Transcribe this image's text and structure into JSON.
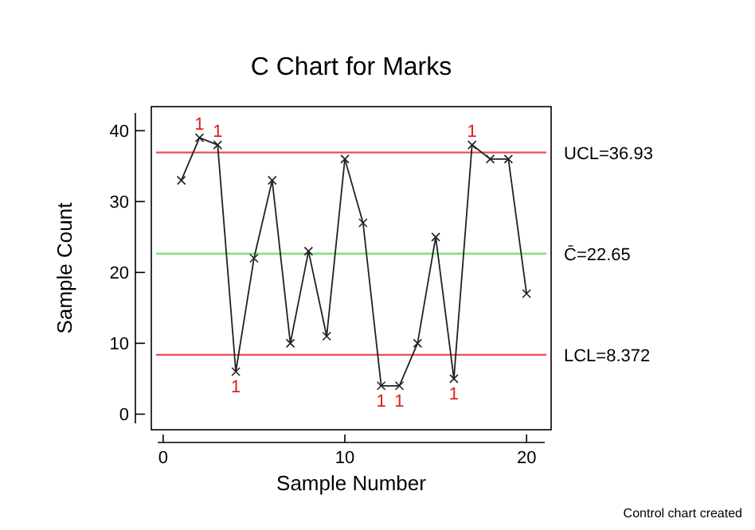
{
  "chart_data": {
    "type": "line",
    "title": "C Chart for Marks",
    "xlabel": "Sample Number",
    "ylabel": "Sample Count",
    "x": [
      1,
      2,
      3,
      4,
      5,
      6,
      7,
      8,
      9,
      10,
      11,
      12,
      13,
      14,
      15,
      16,
      17,
      18,
      19,
      20
    ],
    "series": [
      {
        "color": "#202020",
        "values": [
          33,
          39,
          38,
          6,
          22,
          33,
          10,
          23,
          11,
          36,
          27,
          4,
          4,
          10,
          25,
          5,
          38,
          36,
          36,
          17
        ]
      }
    ],
    "xlim": [
      -0.3,
      21
    ],
    "xticks": [
      0,
      10,
      20
    ],
    "ylim": [
      -1.3,
      42.5
    ],
    "yticks": [
      0,
      10,
      20,
      30,
      40
    ],
    "marker": "cross",
    "line_style": "solid",
    "ref_lines": [
      {
        "axis": "y",
        "value": 36.93,
        "label": "UCL=36.93",
        "color": "#e85050"
      },
      {
        "axis": "y",
        "value": 22.65,
        "label": "C̄=22.65",
        "color": "#80e080"
      },
      {
        "axis": "y",
        "value": 8.372,
        "label": "LCL=8.372",
        "color": "#e85050"
      }
    ],
    "annotations": [
      {
        "text": "1",
        "x": 2,
        "y": 39
      },
      {
        "text": "1",
        "x": 3,
        "y": 38
      },
      {
        "text": "1",
        "x": 4,
        "y": 6
      },
      {
        "text": "1",
        "x": 12,
        "y": 4
      },
      {
        "text": "1",
        "x": 13,
        "y": 4
      },
      {
        "text": "1",
        "x": 16,
        "y": 5
      },
      {
        "text": "1",
        "x": 17,
        "y": 38
      },
      "Control chart created"
    ]
  }
}
